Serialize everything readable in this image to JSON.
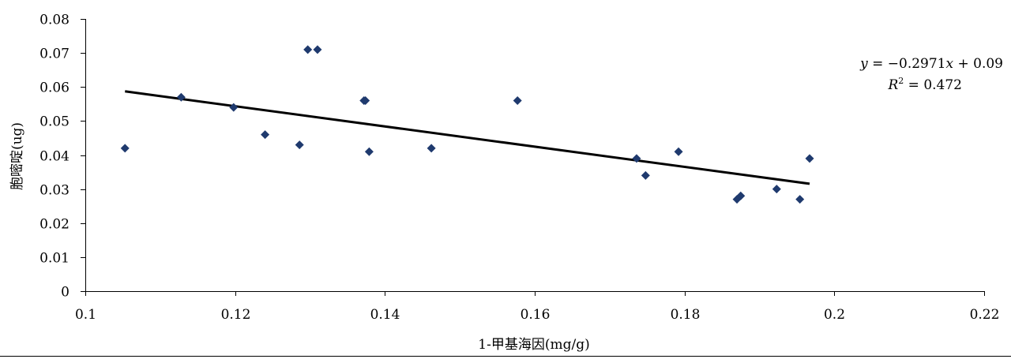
{
  "chart_data": {
    "type": "scatter",
    "xlabel": "1-甲基海因(mg/g)",
    "ylabel": "胞嘧啶(ug)",
    "xlim": [
      0.1,
      0.22
    ],
    "ylim": [
      0,
      0.08
    ],
    "x_ticks": [
      0.1,
      0.12,
      0.14,
      0.16,
      0.18,
      0.2,
      0.22
    ],
    "y_ticks": [
      0,
      0.01,
      0.02,
      0.03,
      0.04,
      0.05,
      0.06,
      0.07,
      0.08
    ],
    "x_tick_labels": [
      "0.1",
      "0.12",
      "0.14",
      "0.16",
      "0.18",
      "0.2",
      "0.22"
    ],
    "y_tick_labels": [
      "0",
      "0.01",
      "0.02",
      "0.03",
      "0.04",
      "0.05",
      "0.06",
      "0.07",
      "0.08"
    ],
    "grid": false,
    "marker_color": "#1f3a6e",
    "series": [
      {
        "x": [
          0.1053,
          0.1128,
          0.1198,
          0.124,
          0.1286,
          0.1297,
          0.131,
          0.1372,
          0.1374,
          0.1379,
          0.1462,
          0.1577,
          0.1736,
          0.1748,
          0.1792,
          0.187,
          0.1875,
          0.1923,
          0.1954,
          0.1967
        ],
        "y": [
          0.042,
          0.057,
          0.054,
          0.046,
          0.043,
          0.071,
          0.071,
          0.056,
          0.056,
          0.041,
          0.042,
          0.056,
          0.039,
          0.034,
          0.041,
          0.027,
          0.028,
          0.03,
          0.027,
          0.039
        ]
      }
    ],
    "trendline": {
      "slope": -0.2971,
      "intercept": 0.09,
      "x_range": [
        0.1053,
        0.1967
      ]
    },
    "annotations": {
      "equation_prefix": "y",
      "equation_rest": " = −0.2971",
      "equation_var": "x",
      "equation_tail": " + 0.09",
      "r2_prefix": "R",
      "r2_sup": "2",
      "r2_rest": " = 0.472"
    }
  }
}
